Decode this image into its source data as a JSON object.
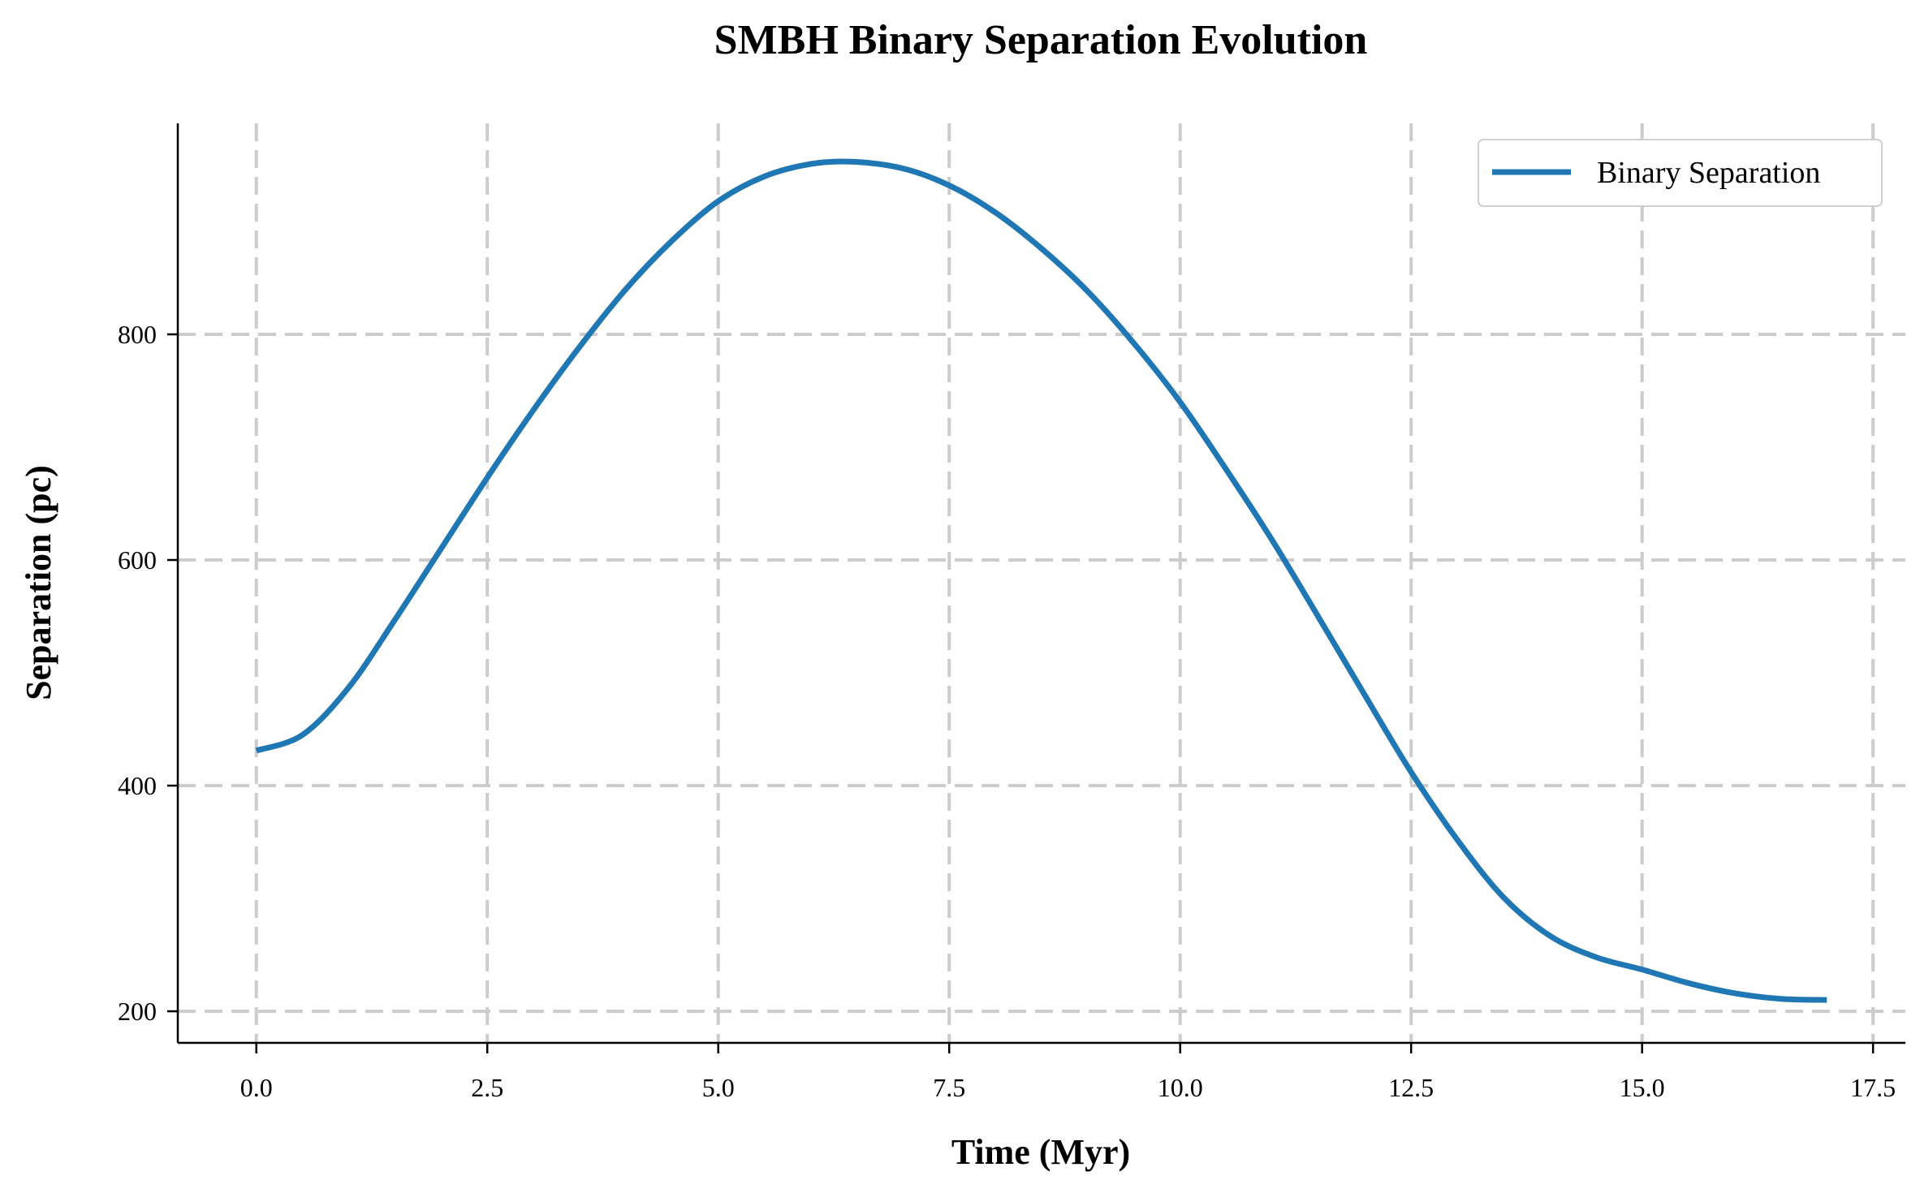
{
  "chart_data": {
    "type": "line",
    "title": "SMBH Binary Separation Evolution",
    "xlabel": "Time (Myr)",
    "ylabel": "Separation (pc)",
    "xlim": [
      -0.85,
      17.85
    ],
    "ylim": [
      172,
      987
    ],
    "xticks": [
      0.0,
      2.5,
      5.0,
      7.5,
      10.0,
      12.5,
      15.0,
      17.5
    ],
    "xtick_labels": [
      "0.0",
      "2.5",
      "5.0",
      "7.5",
      "10.0",
      "12.5",
      "15.0",
      "17.5"
    ],
    "yticks": [
      200,
      400,
      600,
      800
    ],
    "ytick_labels": [
      "200",
      "400",
      "600",
      "800"
    ],
    "grid": true,
    "grid_style": "dashed",
    "legend_position": "top-right",
    "series": [
      {
        "name": "Binary Separation",
        "color": "#1f77b4",
        "x": [
          0.0,
          0.5,
          1.0,
          1.5,
          2.0,
          2.5,
          3.0,
          3.5,
          4.0,
          4.5,
          5.0,
          5.5,
          6.0,
          6.45,
          7.0,
          7.5,
          8.0,
          8.5,
          9.0,
          9.5,
          10.0,
          10.5,
          11.0,
          11.5,
          12.0,
          12.5,
          13.0,
          13.5,
          14.0,
          14.5,
          15.0,
          15.5,
          16.0,
          16.5,
          17.0
        ],
        "y": [
          431,
          445,
          487,
          547,
          610,
          673,
          733,
          789,
          840,
          883,
          918,
          940,
          951,
          953,
          947,
          932,
          908,
          876,
          838,
          792,
          740,
          680,
          617,
          549,
          480,
          412,
          352,
          301,
          267,
          248,
          237,
          225,
          216,
          211,
          210
        ]
      }
    ]
  }
}
